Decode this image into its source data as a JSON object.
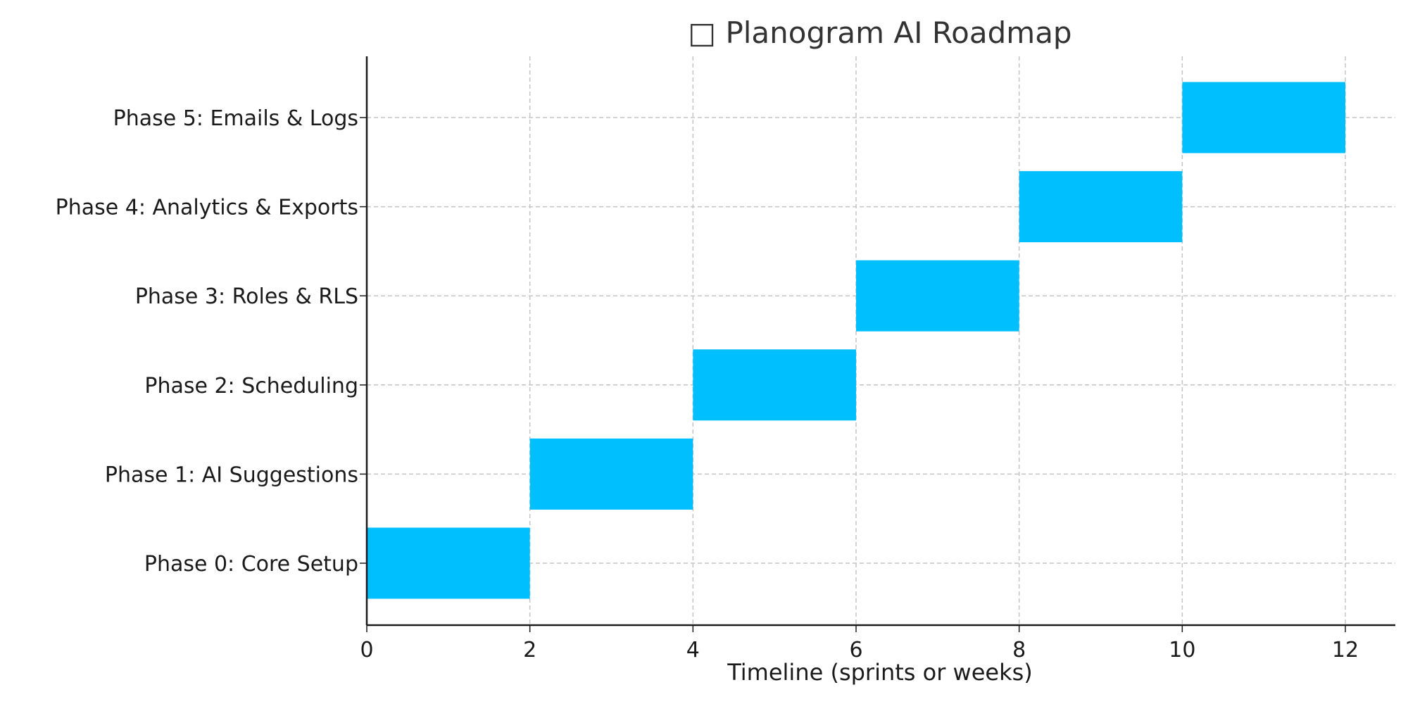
{
  "chart_data": {
    "type": "bar",
    "orientation": "horizontal",
    "title": "□ Planogram AI Roadmap",
    "xlabel": "Timeline (sprints or weeks)",
    "ylabel": "",
    "xlim": [
      0,
      12.6
    ],
    "xticks": [
      0,
      2,
      4,
      6,
      8,
      10,
      12
    ],
    "grid": true,
    "bar_color": "#00bfff",
    "tasks": [
      {
        "label": "Phase 0: Core Setup",
        "start": 0,
        "duration": 2
      },
      {
        "label": "Phase 1: AI Suggestions",
        "start": 2,
        "duration": 2
      },
      {
        "label": "Phase 2: Scheduling",
        "start": 4,
        "duration": 2
      },
      {
        "label": "Phase 3: Roles & RLS",
        "start": 6,
        "duration": 2
      },
      {
        "label": "Phase 4: Analytics & Exports",
        "start": 8,
        "duration": 2
      },
      {
        "label": "Phase 5: Emails & Logs",
        "start": 10,
        "duration": 2
      }
    ]
  }
}
